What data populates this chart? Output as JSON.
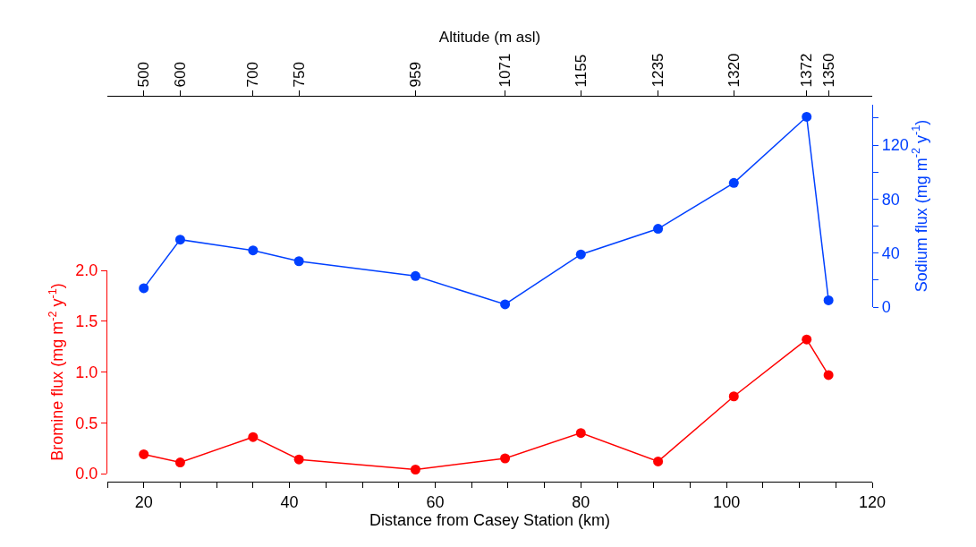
{
  "chart_data": [
    {
      "type": "line",
      "x2label": "Altitude (m asl)",
      "y2label": "Sodium flux (mg m$^{-2}$ y$^{-1}$)",
      "x": [
        20,
        25,
        35,
        41.3,
        57.3,
        69.6,
        80,
        90.6,
        101,
        111,
        114
      ],
      "series": [
        {
          "color": "#0040ff",
          "axis": "y2",
          "values": [
            14,
            50,
            42,
            34,
            23,
            2,
            39,
            58,
            92,
            141,
            5
          ]
        }
      ],
      "xlim": [
        15,
        120
      ],
      "annotations": [
        {
          "text": "500",
          "x": 20
        },
        {
          "text": "600",
          "x": 25
        },
        {
          "text": "700",
          "x": 35
        },
        {
          "text": "750",
          "x": 41.3
        },
        {
          "text": "959",
          "x": 57.3
        },
        {
          "text": "1071",
          "x": 69.6
        },
        {
          "text": "1155",
          "x": 80
        },
        {
          "text": "1235",
          "x": 90.6
        },
        {
          "text": "1320",
          "x": 101
        },
        {
          "text": "1372",
          "x": 111
        },
        {
          "text": "1350",
          "x": 114
        }
      ],
      "y2lim": [
        0,
        150
      ],
      "y2ticks": [
        0,
        {
          "value": 20,
          "label": null
        },
        40,
        {
          "value": 60,
          "label": null
        },
        80,
        {
          "value": 100,
          "label": null
        },
        120,
        {
          "value": 140,
          "label": null
        }
      ],
      "tick_labels": "y",
      "grid": false,
      "marker": "circle",
      "line_style": "solid"
    },
    {
      "type": "line",
      "xlabel": "Distance from Casey Station (km)",
      "ylabel": "Bromine flux (mg m$^{-2}$ y$^{-1}$)",
      "x": [
        20,
        25,
        35,
        41.3,
        57.3,
        69.6,
        80,
        90.6,
        101,
        111,
        114
      ],
      "series": [
        {
          "color": "#ff0000",
          "values": [
            0.19,
            0.11,
            0.36,
            0.14,
            0.04,
            0.15,
            0.4,
            0.12,
            0.76,
            1.32,
            0.97
          ]
        }
      ],
      "xlim": [
        15,
        120
      ],
      "xticks": [
        {
          "value": 15,
          "label": null
        },
        20,
        {
          "value": 25,
          "label": null
        },
        {
          "value": 30,
          "label": null
        },
        {
          "value": 35,
          "label": null
        },
        40,
        {
          "value": 45,
          "label": null
        },
        {
          "value": 50,
          "label": null
        },
        {
          "value": 55,
          "label": null
        },
        60,
        {
          "value": 65,
          "label": null
        },
        {
          "value": 70,
          "label": null
        },
        {
          "value": 75,
          "label": null
        },
        80,
        {
          "value": 85,
          "label": null
        },
        {
          "value": 90,
          "label": null
        },
        {
          "value": 95,
          "label": null
        },
        100,
        {
          "value": 105,
          "label": null
        },
        {
          "value": 110,
          "label": null
        },
        {
          "value": 115,
          "label": null
        },
        120
      ],
      "ylim": [
        0,
        2
      ],
      "yticks": [
        {
          "value": 0,
          "label": "0.0"
        },
        {
          "value": 0.5,
          "label": "0.5"
        },
        {
          "value": 1,
          "label": "1.0"
        },
        {
          "value": 1.5,
          "label": "1.5"
        },
        {
          "value": 2,
          "label": "2.0"
        }
      ],
      "grid": false,
      "marker": "circle",
      "line_style": "solid"
    }
  ]
}
